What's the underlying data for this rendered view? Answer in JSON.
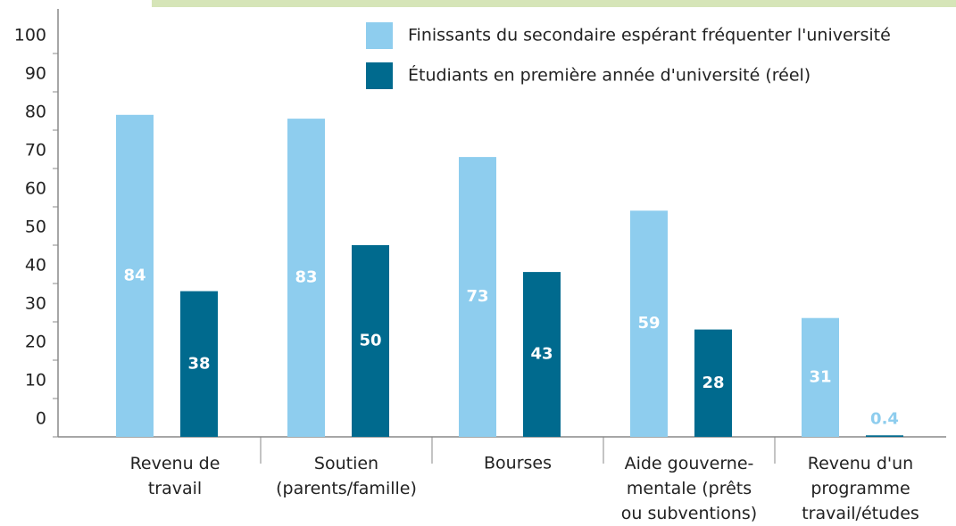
{
  "chart_data": {
    "type": "bar",
    "categories": [
      "Revenu de\ntravail",
      "Soutien\n(parents/famille)",
      "Bourses",
      "Aide gouverne-\nmentale (prêts\nou subventions)",
      "Revenu d'un\nprogramme\ntravail/études"
    ],
    "series": [
      {
        "name": "Finissants du secondaire espérant fréquenter l'université",
        "color": "#8ecdee",
        "values": [
          84,
          83,
          73,
          59,
          31
        ]
      },
      {
        "name": "Étudiants en première année d'université (réel)",
        "color": "#006a8e",
        "values": [
          38,
          50,
          43,
          28,
          0.4
        ]
      }
    ],
    "ylim": [
      0,
      110
    ],
    "yticks": [
      0,
      10,
      20,
      30,
      40,
      50,
      60,
      70,
      80,
      90,
      100
    ],
    "legend": "top-right"
  }
}
